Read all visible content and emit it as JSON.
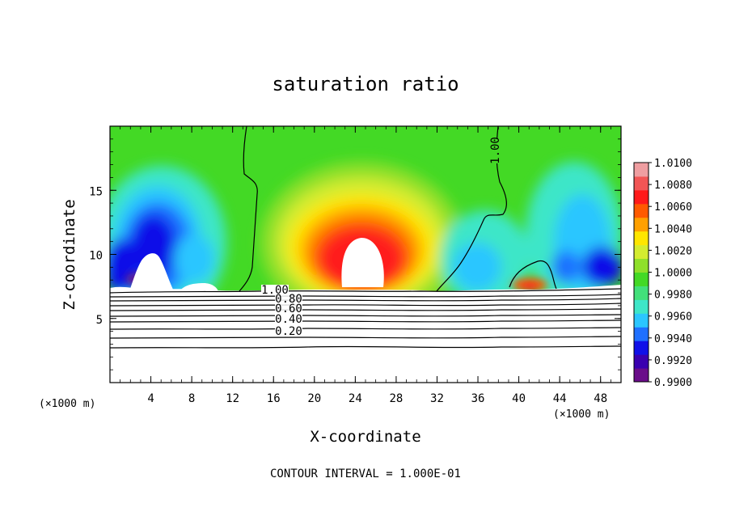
{
  "chart_data": {
    "type": "heatmap",
    "title": "saturation ratio",
    "xlabel": "X-coordinate",
    "ylabel": "Z-coordinate",
    "x_unit": "(×1000 m)",
    "z_unit": "(×1000 m)",
    "xlim": [
      0,
      50
    ],
    "ylim": [
      0,
      20
    ],
    "x_ticks": [
      "4",
      "8",
      "12",
      "16",
      "20",
      "24",
      "28",
      "32",
      "36",
      "40",
      "44",
      "48"
    ],
    "y_ticks": [
      "5",
      "10",
      "15"
    ],
    "colorbar": {
      "min": 0.99,
      "max": 1.01,
      "labels": [
        "1.0100",
        "1.0080",
        "1.0060",
        "1.0040",
        "1.0020",
        "1.0000",
        "0.9980",
        "0.9960",
        "0.9940",
        "0.9920",
        "0.9900"
      ],
      "colors": [
        "#6a0d8a",
        "#3a00b0",
        "#1010e8",
        "#1f70ff",
        "#2bc6ff",
        "#3ee6c8",
        "#42e07a",
        "#43d925",
        "#8fe02a",
        "#d4ec30",
        "#ffe600",
        "#ffa000",
        "#ff5a00",
        "#ff1a1a",
        "#f25555",
        "#ef9ea1"
      ]
    },
    "contour_labels": [
      "1.00",
      "0.80",
      "0.60",
      "0.40",
      "0.20",
      "1.00"
    ],
    "contour_interval_text": "CONTOUR INTERVAL = 1.000E-01",
    "fields": {
      "background": "#43d925",
      "blue_low": "#1010e8",
      "cyan": "#2bc6ff",
      "red_high": "#ff1a1a",
      "unsaturated": "#ffffff"
    }
  }
}
